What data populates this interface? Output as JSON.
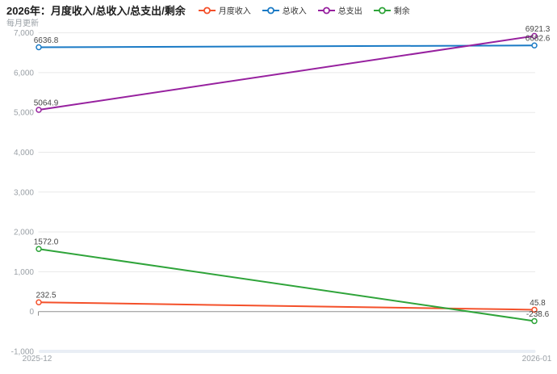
{
  "header": {
    "title": "2026年：月度收入/总收入/总支出/剩余",
    "subtitle": "每月更新"
  },
  "chart_data": {
    "type": "line",
    "title": "2026年：月度收入/总收入/总支出/剩余",
    "subtitle": "每月更新",
    "x": [
      "2025-12",
      "2026-01"
    ],
    "series": [
      {
        "name": "月度收入",
        "color": "#f4502a",
        "values": [
          232.5,
          45.8
        ],
        "labels": [
          "232.5",
          "45.8"
        ]
      },
      {
        "name": "总收入",
        "color": "#1a7ac5",
        "values": [
          6636.8,
          6682.6
        ],
        "labels": [
          "6636.8",
          "6682.6"
        ]
      },
      {
        "name": "总支出",
        "color": "#97219f",
        "values": [
          5064.9,
          6921.3
        ],
        "labels": [
          "5064.9",
          "6921.3"
        ]
      },
      {
        "name": "剩余",
        "color": "#2fa43a",
        "values": [
          1572.0,
          -238.6
        ],
        "labels": [
          "1572.0",
          "-238.6"
        ]
      }
    ],
    "ylim": [
      -1000,
      7000
    ],
    "ytick_step": 1000,
    "ytick_labels": [
      "-1,000",
      "0",
      "1,000",
      "2,000",
      "3,000",
      "4,000",
      "5,000",
      "6,000",
      "7,000"
    ],
    "grid": true,
    "legend_position": "top"
  },
  "colors": {
    "grid_line": "#e9e9e9",
    "axis_line": "#8f8f8f",
    "tick_text": "#9aa0a6",
    "data_label": "#464646",
    "zoom_slider": "#e9eef5"
  }
}
